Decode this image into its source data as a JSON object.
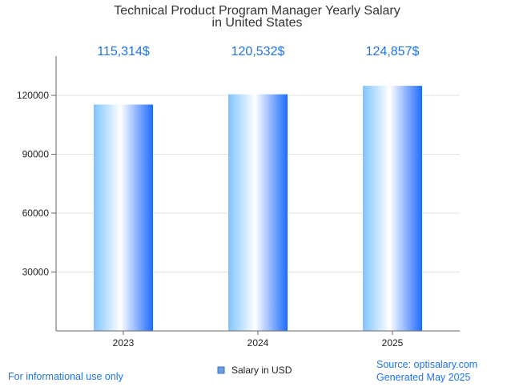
{
  "chart_data": {
    "type": "bar",
    "title": [
      "Technical Product Program Manager Yearly Salary",
      "in United States"
    ],
    "categories": [
      "2023",
      "2024",
      "2025"
    ],
    "series": [
      {
        "name": "Salary in USD",
        "values": [
          115314,
          120532,
          124857
        ]
      }
    ],
    "value_labels": [
      "115,314$",
      "120,532$",
      "124,857$"
    ],
    "y_ticks": [
      30000,
      60000,
      90000,
      120000
    ],
    "ylim": [
      0,
      140000
    ],
    "grid": true,
    "legend_position": "bottom-center"
  },
  "footer": {
    "left": "For informational use only",
    "source": "Source: optisalary.com",
    "generated": "Generated May 2025"
  },
  "colors": {
    "bar_light": "#ffffff",
    "bar_mid": "#7fc4ff",
    "bar_dark": "#1f6bff",
    "accent_text": "#1f74e6",
    "grid": "#e3e3e3",
    "axis": "#666666"
  }
}
